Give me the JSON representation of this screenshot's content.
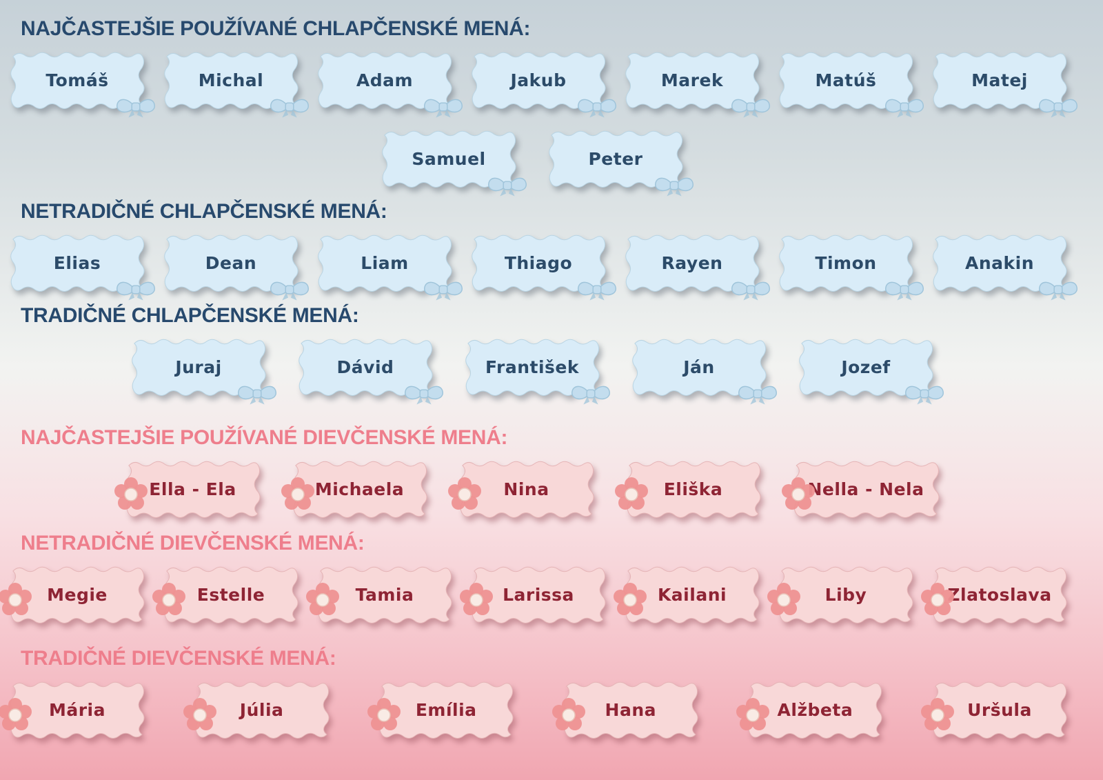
{
  "icons": {
    "boy": "bow-icon",
    "girl": "flower-icon"
  },
  "colors": {
    "bgTop": "#c6d1d8",
    "bgUpper": "#d5dde0",
    "bgMid": "#f2f3f1",
    "bgLower": "#f8e0e3",
    "bgPink": "#f5c3ca",
    "bgBottom": "#f1a6b1",
    "boyHeading": "#27496d",
    "boyTag": "#d9ecf8",
    "boyTagEdge": "#b9d4e3",
    "boyText": "#2c4b69",
    "girlHeading": "#ee7e8c",
    "girlTag": "#f8d8d8",
    "girlTagEdge": "#e5b4b6",
    "girlText": "#8e2434",
    "bowMain": "#c3ddee",
    "bowDark": "#9fc4da",
    "petal": "#ee9292",
    "flowerCenter": "#f9ebe5"
  },
  "sections": [
    {
      "id": "boys-common",
      "theme": "boy",
      "heading": "NAJČASTEJŠIE POUŽÍVANÉ CHLAPČENSKÉ MENÁ:",
      "rows": [
        [
          "Tomáš",
          "Michal",
          "Adam",
          "Jakub",
          "Marek",
          "Matúš",
          "Matej"
        ],
        [
          "Samuel",
          "Peter"
        ]
      ]
    },
    {
      "id": "boys-untraditional",
      "theme": "boy",
      "heading": "NETRADIČNÉ CHLAPČENSKÉ MENÁ:",
      "rows": [
        [
          "Elias",
          "Dean",
          "Liam",
          "Thiago",
          "Rayen",
          "Timon",
          "Anakin"
        ]
      ]
    },
    {
      "id": "boys-traditional",
      "theme": "boy",
      "heading": "TRADIČNÉ CHLAPČENSKÉ MENÁ:",
      "rows": [
        [
          "Juraj",
          "Dávid",
          "František",
          "Ján",
          "Jozef"
        ]
      ]
    },
    {
      "id": "girls-common",
      "theme": "girl",
      "heading": "NAJČASTEJŠIE POUŽÍVANÉ DIEVČENSKÉ MENÁ:",
      "rows": [
        [
          "Ella - Ela",
          "Michaela",
          "Nina",
          "Eliška",
          "Nella - Nela"
        ]
      ]
    },
    {
      "id": "girls-untraditional",
      "theme": "girl",
      "heading": "NETRADIČNÉ DIEVČENSKÉ MENÁ:",
      "rows": [
        [
          "Megie",
          "Estelle",
          "Tamia",
          "Larissa",
          "Kailani",
          "Liby",
          "Zlatoslava"
        ]
      ]
    },
    {
      "id": "girls-traditional",
      "theme": "girl",
      "heading": "TRADIČNÉ DIEVČENSKÉ MENÁ:",
      "rows": [
        [
          "Mária",
          "Júlia",
          "Emília",
          "Hana",
          "Alžbeta",
          "Uršula"
        ]
      ]
    }
  ]
}
